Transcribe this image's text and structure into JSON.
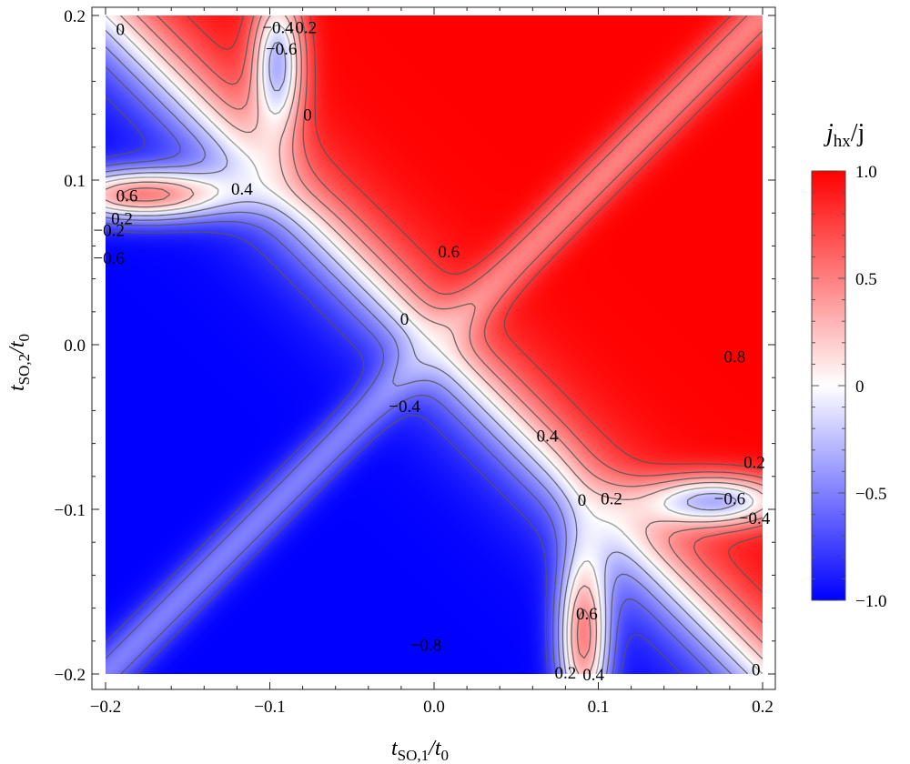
{
  "chart_data": {
    "type": "heatmap",
    "title": "",
    "xlabel": {
      "main": "t",
      "sub": "SO,1",
      "rest": "/t",
      "sub2": "0"
    },
    "ylabel": {
      "main": "t",
      "sub": "SO,2",
      "rest": "/t",
      "sub2": "0"
    },
    "xlim": [
      -0.2,
      0.2
    ],
    "ylim": [
      -0.2,
      0.2
    ],
    "x_ticks": [
      {
        "value": -0.2,
        "label": "−0.2"
      },
      {
        "value": -0.1,
        "label": "−0.1"
      },
      {
        "value": 0.0,
        "label": "0.0"
      },
      {
        "value": 0.1,
        "label": "0.1"
      },
      {
        "value": 0.2,
        "label": "0.2"
      }
    ],
    "y_ticks": [
      {
        "value": -0.2,
        "label": "−0.2"
      },
      {
        "value": -0.1,
        "label": "−0.1"
      },
      {
        "value": 0.0,
        "label": "0.0"
      },
      {
        "value": 0.1,
        "label": "0.1"
      },
      {
        "value": 0.2,
        "label": "0.2"
      }
    ],
    "colorbar": {
      "title_main": "j",
      "title_sub": "hx",
      "title_rest": "/j",
      "range": [
        -1.0,
        1.0
      ],
      "ticks": [
        {
          "value": 1.0,
          "label": "1.0"
        },
        {
          "value": 0.5,
          "label": "0.5"
        },
        {
          "value": 0.0,
          "label": "0"
        },
        {
          "value": -0.5,
          "label": "−0.5"
        },
        {
          "value": -1.0,
          "label": "−1.0"
        }
      ],
      "colors": {
        "high": "#ff0000",
        "mid": "#ffffff",
        "low": "#0000ff"
      }
    },
    "contour_levels": [
      -0.8,
      -0.6,
      -0.4,
      -0.2,
      0,
      0.2,
      0.4,
      0.6,
      0.8
    ],
    "contour_labels": [
      {
        "text": "0",
        "x": -0.191,
        "y": 0.192
      },
      {
        "text": "−0.4",
        "x": -0.095,
        "y": 0.193
      },
      {
        "text": "0.2",
        "x": -0.078,
        "y": 0.193
      },
      {
        "text": "−0.6",
        "x": -0.093,
        "y": 0.18
      },
      {
        "text": "0",
        "x": -0.077,
        "y": 0.14
      },
      {
        "text": "0.6",
        "x": -0.187,
        "y": 0.091
      },
      {
        "text": "0.4",
        "x": -0.117,
        "y": 0.095
      },
      {
        "text": "0.2",
        "x": -0.19,
        "y": 0.077
      },
      {
        "text": "−0.2",
        "x": -0.198,
        "y": 0.07
      },
      {
        "text": "−0.6",
        "x": -0.198,
        "y": 0.053
      },
      {
        "text": "0.6",
        "x": 0.009,
        "y": 0.057
      },
      {
        "text": "0",
        "x": -0.018,
        "y": 0.016
      },
      {
        "text": "0.8",
        "x": 0.183,
        "y": -0.007
      },
      {
        "text": "−0.4",
        "x": -0.018,
        "y": -0.037
      },
      {
        "text": "0.4",
        "x": 0.069,
        "y": -0.055
      },
      {
        "text": "0.2",
        "x": 0.195,
        "y": -0.071
      },
      {
        "text": "0",
        "x": 0.09,
        "y": -0.094
      },
      {
        "text": "0.2",
        "x": 0.108,
        "y": -0.093
      },
      {
        "text": "−0.6",
        "x": 0.18,
        "y": -0.093
      },
      {
        "text": "−0.4",
        "x": 0.195,
        "y": -0.105
      },
      {
        "text": "0.6",
        "x": 0.093,
        "y": -0.163
      },
      {
        "text": "−0.8",
        "x": -0.005,
        "y": -0.182
      },
      {
        "text": "0.2",
        "x": 0.08,
        "y": -0.199
      },
      {
        "text": "0.4",
        "x": 0.097,
        "y": -0.2
      },
      {
        "text": "0",
        "x": 0.196,
        "y": -0.197
      }
    ]
  }
}
